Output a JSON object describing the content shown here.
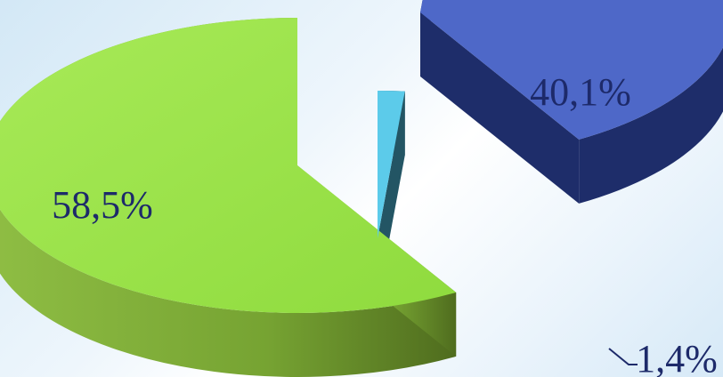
{
  "chart_data": {
    "type": "pie",
    "title": "",
    "categories": [
      "58,5%",
      "40,1%",
      "1,4%"
    ],
    "values": [
      58.5,
      40.1,
      1.4
    ],
    "labels": [
      "58,5%",
      "40,1%",
      "1,4%"
    ],
    "style": "3d-exploded",
    "colors": {
      "top": [
        "#9ee44c",
        "#4e68c8",
        "#5ccbea"
      ],
      "side": [
        "#6e9c2c",
        "#1e2d6a",
        "#235564"
      ]
    },
    "label_color": "#1d2a6a"
  }
}
